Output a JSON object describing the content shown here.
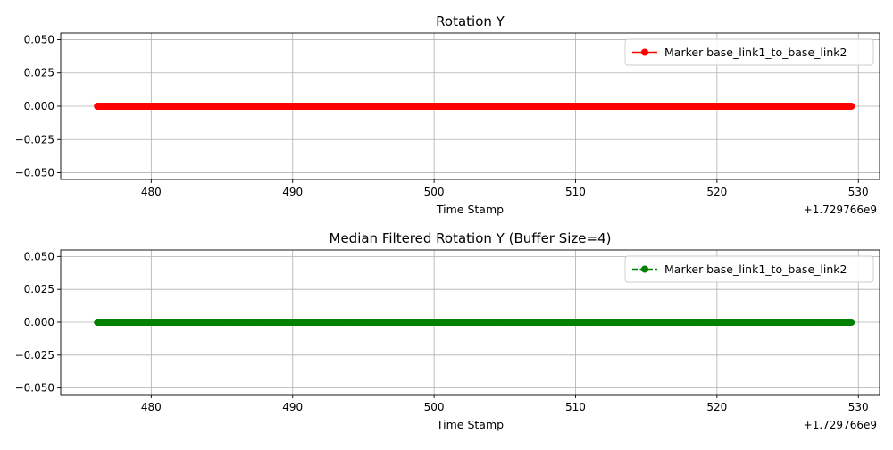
{
  "chart_data": [
    {
      "type": "line",
      "title": "Rotation Y",
      "xlabel": "Time Stamp",
      "ylabel": "",
      "x_offset_label": "+1.729766e9",
      "xlim": [
        473.6,
        531.5
      ],
      "ylim": [
        -0.055,
        0.055
      ],
      "x_ticks": [
        480,
        490,
        500,
        510,
        520,
        530
      ],
      "y_ticks": [
        0.05,
        0.025,
        0.0,
        -0.025,
        -0.05
      ],
      "x_tick_labels": [
        "480",
        "490",
        "500",
        "510",
        "520",
        "530"
      ],
      "y_tick_labels": [
        "0.050",
        "0.025",
        "0.000",
        "−0.025",
        "−0.050"
      ],
      "grid": true,
      "legend_position": "top-right",
      "series": [
        {
          "name": "Marker base_link1_to_base_link2",
          "color": "#ff0000",
          "line_style": "solid",
          "marker": "circle",
          "x_start": 476.2,
          "x_end": 529.5,
          "y_constant": 0.0
        }
      ]
    },
    {
      "type": "line",
      "title": "Median Filtered Rotation Y (Buffer Size=4)",
      "xlabel": "Time Stamp",
      "ylabel": "",
      "x_offset_label": "+1.729766e9",
      "xlim": [
        473.6,
        531.5
      ],
      "ylim": [
        -0.055,
        0.055
      ],
      "x_ticks": [
        480,
        490,
        500,
        510,
        520,
        530
      ],
      "y_ticks": [
        0.05,
        0.025,
        0.0,
        -0.025,
        -0.05
      ],
      "x_tick_labels": [
        "480",
        "490",
        "500",
        "510",
        "520",
        "530"
      ],
      "y_tick_labels": [
        "0.050",
        "0.025",
        "0.000",
        "−0.025",
        "−0.050"
      ],
      "grid": true,
      "legend_position": "top-right",
      "series": [
        {
          "name": "Marker base_link1_to_base_link2",
          "color": "#008000",
          "line_style": "dashed",
          "marker": "circle",
          "x_start": 476.2,
          "x_end": 529.5,
          "y_constant": 0.0
        }
      ]
    }
  ]
}
